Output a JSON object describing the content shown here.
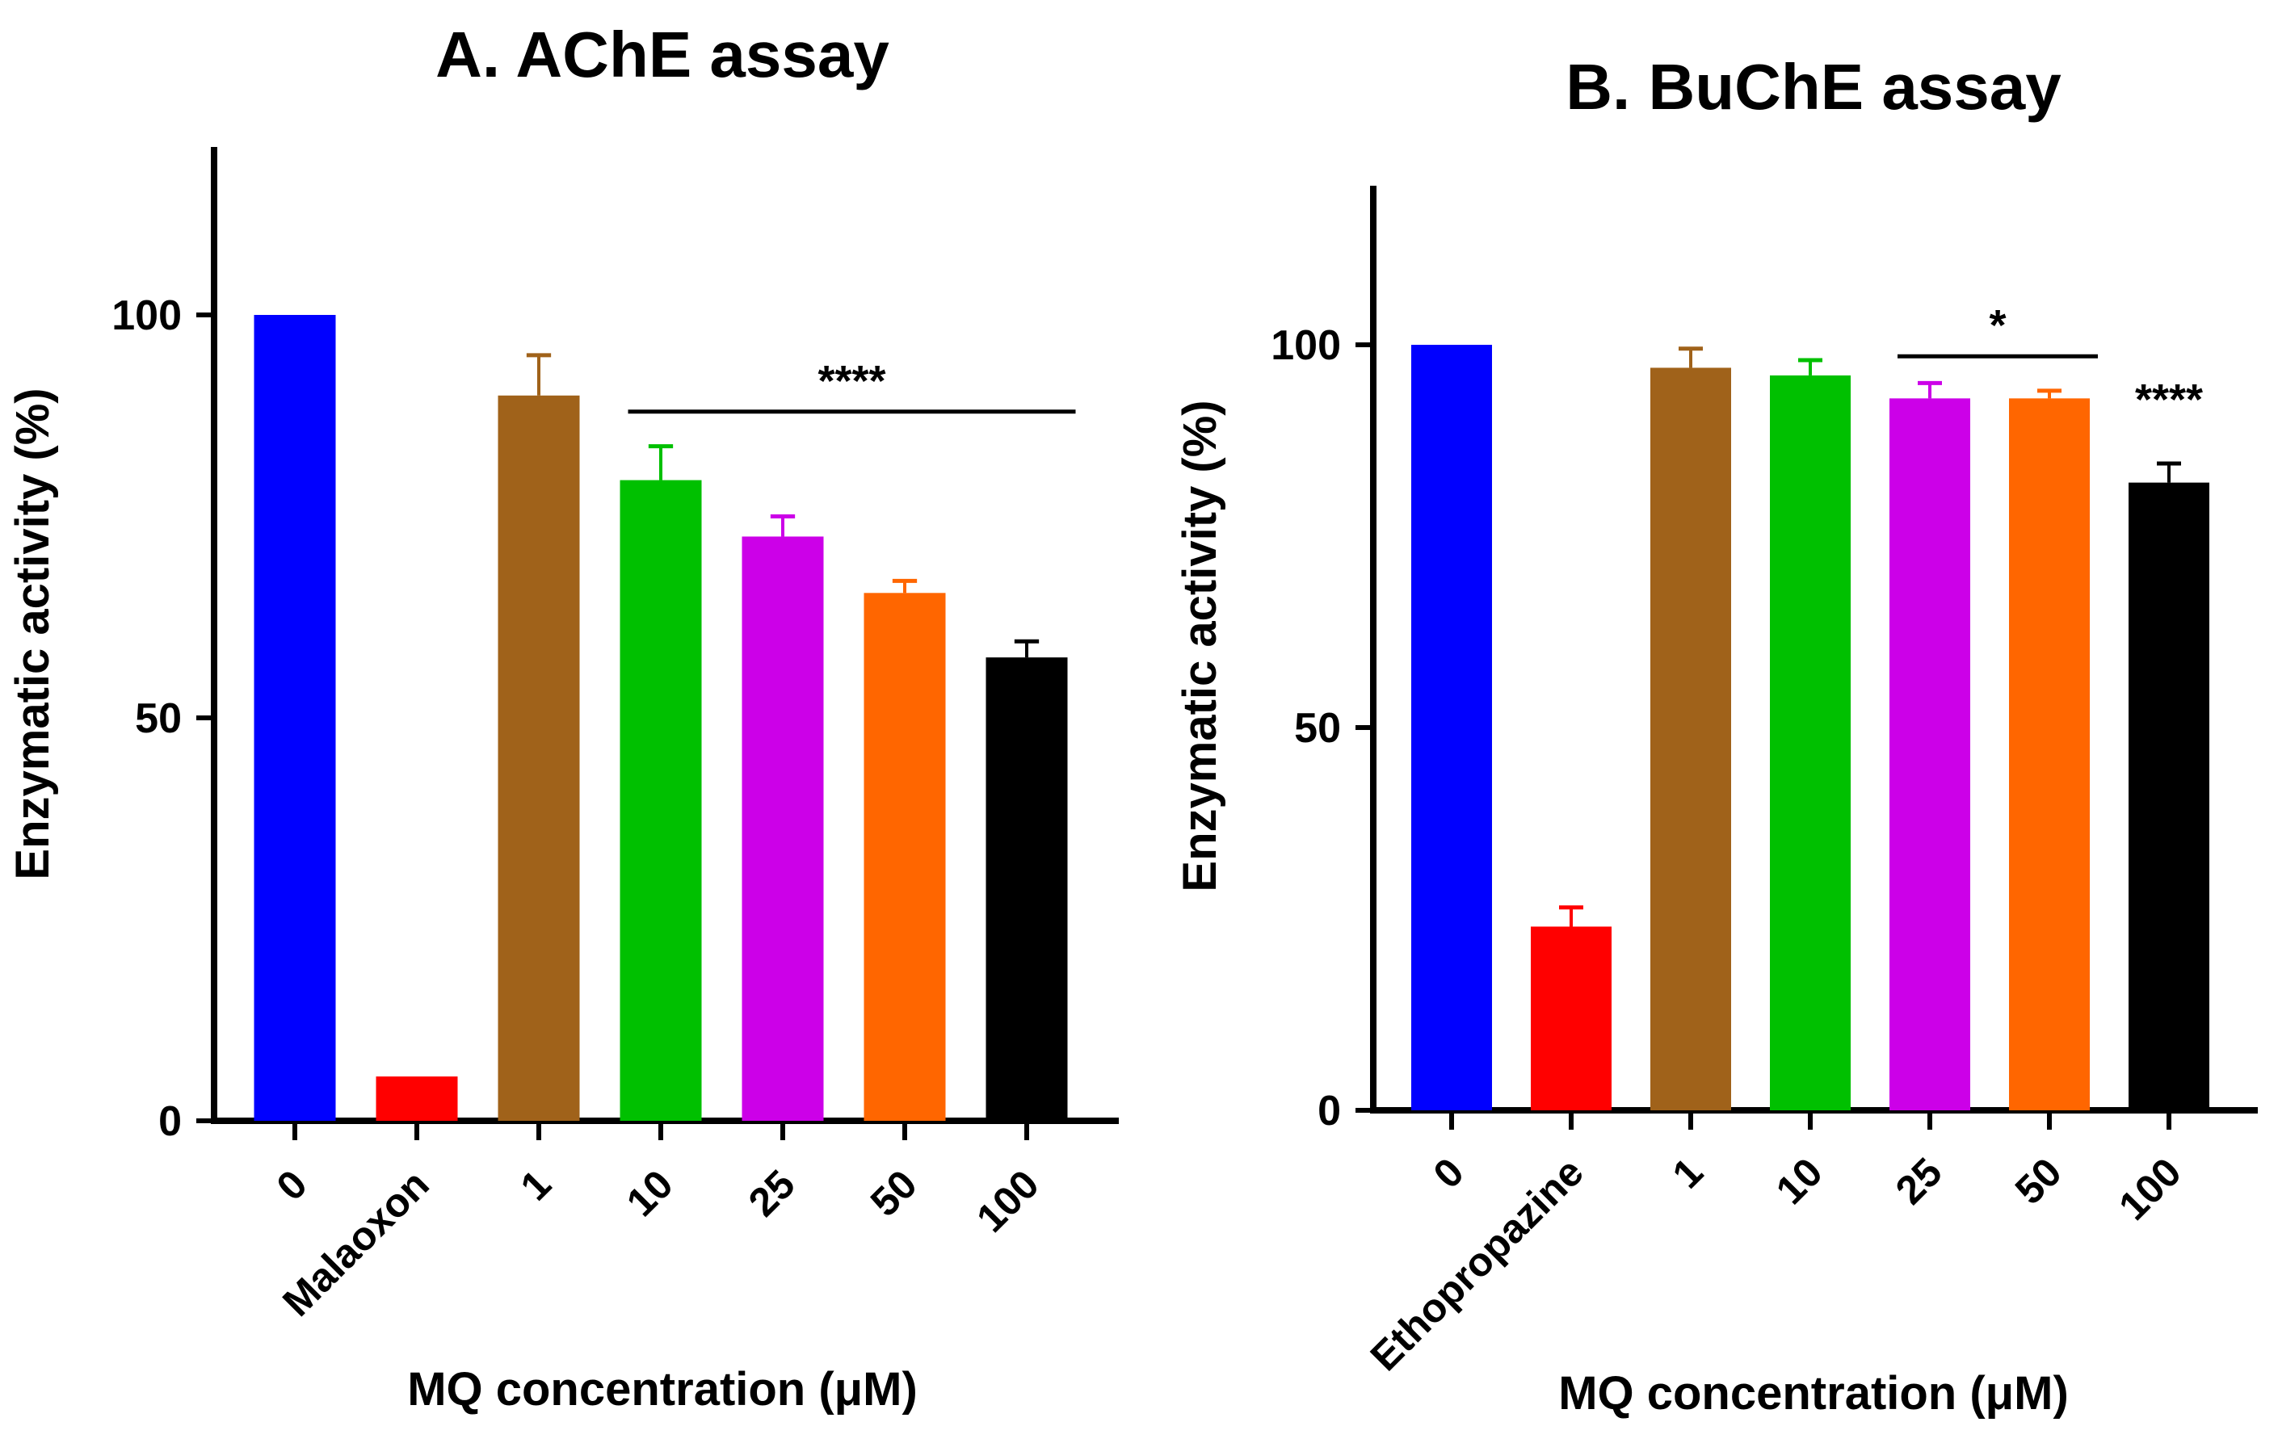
{
  "chart_data": [
    {
      "type": "bar",
      "title": "A. AChE assay",
      "xlabel": "MQ concentration (μM)",
      "ylabel": "Enzymatic activity (%)",
      "ylim": [
        0,
        120
      ],
      "yticks": [
        0,
        50,
        100
      ],
      "grid": false,
      "legend": "none",
      "categories": [
        "0",
        "Malaoxon",
        "1",
        "10",
        "25",
        "50",
        "100"
      ],
      "values": [
        100,
        5.5,
        90,
        79.5,
        72.5,
        65.5,
        57.5
      ],
      "errors": [
        0,
        0,
        5,
        4.2,
        2.5,
        1.5,
        2
      ],
      "colors": [
        "#0000FF",
        "#FF0000",
        "#A0621A",
        "#00C000",
        "#CC00E8",
        "#FF6600",
        "#000000"
      ],
      "annotations": [
        {
          "text": "****",
          "type": "bracket",
          "from": "10",
          "to": "100",
          "y": 88
        }
      ]
    },
    {
      "type": "bar",
      "title": "B. BuChE assay",
      "xlabel": "MQ concentration (μM)",
      "ylabel": "Enzymatic activity (%)",
      "ylim": [
        0,
        120
      ],
      "yticks": [
        0,
        50,
        100
      ],
      "grid": false,
      "legend": "none",
      "categories": [
        "0",
        "Ethopropazine",
        "1",
        "10",
        "25",
        "50",
        "100"
      ],
      "values": [
        100,
        24,
        97,
        96,
        93,
        93,
        82
      ],
      "errors": [
        0,
        2.5,
        2.5,
        2,
        2,
        1,
        2.5
      ],
      "colors": [
        "#0000FF",
        "#FF0000",
        "#A0621A",
        "#00C000",
        "#CC00E8",
        "#FF6600",
        "#000000"
      ],
      "annotations": [
        {
          "text": "*",
          "type": "bracket",
          "from": "25",
          "to": "50",
          "y": 98.5
        },
        {
          "text": "****",
          "type": "label",
          "at": "100",
          "y": 92
        }
      ]
    }
  ]
}
